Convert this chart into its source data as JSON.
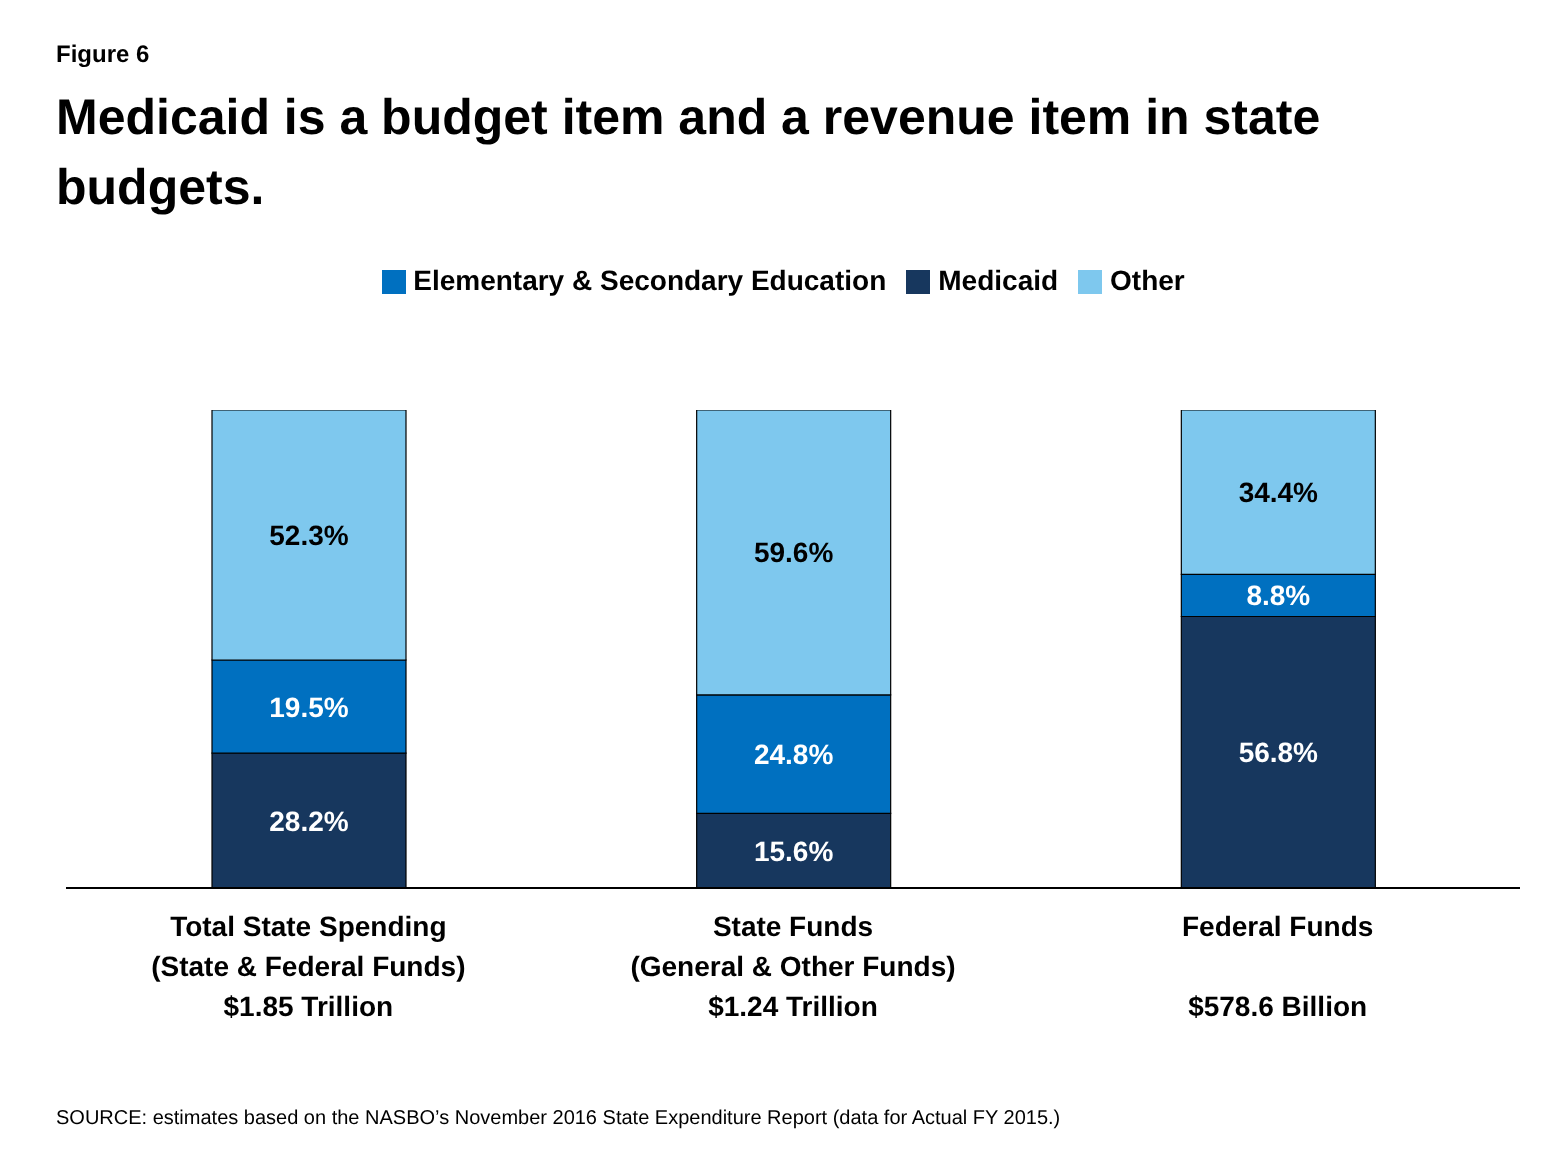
{
  "chart_data": {
    "type": "bar",
    "stacked": true,
    "title": "Medicaid is a budget item and a revenue item in state budgets.",
    "subtitle": "Figure 6",
    "categories": [
      "Total State Spending\n(State & Federal Funds)\n$1.85 Trillion",
      "State Funds\n(General & Other Funds)\n$1.24 Trillion",
      "Federal Funds\n\n$578.6 Billion"
    ],
    "series": [
      {
        "name": "Medicaid",
        "color": "#17375e",
        "values": [
          28.2,
          15.6,
          56.8
        ],
        "value_labels": [
          "28.2%",
          "15.6%",
          "56.8%"
        ]
      },
      {
        "name": "Elementary & Secondary Education",
        "color": "#0070c0",
        "values": [
          19.5,
          24.8,
          8.8
        ],
        "value_labels": [
          "19.5%",
          "24.8%",
          "8.8%"
        ]
      },
      {
        "name": "Other",
        "color": "#7ec8ee",
        "values": [
          52.3,
          59.6,
          34.4
        ],
        "value_labels": [
          "52.3%",
          "59.6%",
          "34.4%"
        ]
      }
    ],
    "ylim": [
      0,
      100
    ],
    "tick_labels": "x",
    "legend": "top",
    "grid": false,
    "annotations": [
      "SOURCE: estimates based on the NASBO’s November 2016 State Expenditure Report (data for Actual FY 2015.)"
    ]
  }
}
